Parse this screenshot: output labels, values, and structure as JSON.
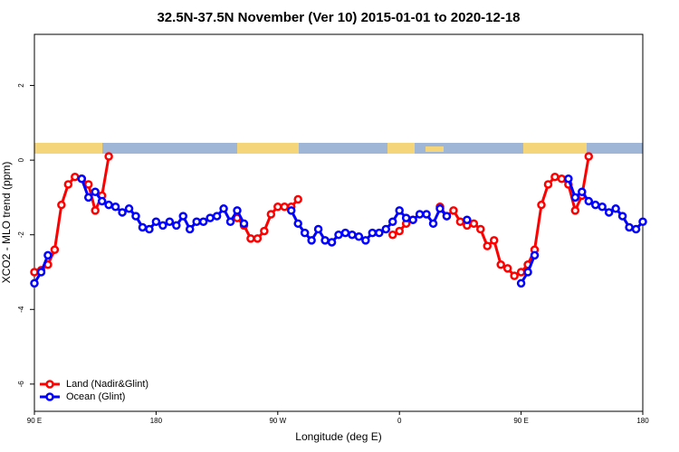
{
  "chart_data": {
    "type": "line",
    "title": "32.5N-37.5N November (Ver 10)   2015-01-01 to 2020-12-18",
    "xlabel": "Longitude (deg E)",
    "ylabel": "XCO2 - MLO trend (ppm)",
    "x": [
      90,
      95,
      100,
      105,
      110,
      115,
      120,
      125,
      130,
      135,
      140,
      145,
      150,
      155,
      160,
      165,
      170,
      175,
      180,
      185,
      190,
      195,
      200,
      205,
      210,
      215,
      220,
      225,
      230,
      235,
      240,
      245,
      250,
      255,
      260,
      265,
      270,
      275,
      280,
      285,
      290,
      295,
      300,
      305,
      310,
      315,
      320,
      325,
      330,
      335,
      340,
      345,
      350,
      355,
      360,
      365,
      370,
      375,
      380,
      385,
      390,
      395,
      400,
      405,
      410,
      415,
      420,
      425,
      430,
      435,
      440,
      445,
      450,
      455,
      460,
      465,
      470,
      475,
      480,
      485,
      490,
      495,
      500,
      505,
      510,
      515,
      520,
      525,
      530,
      535,
      540
    ],
    "xlim": [
      90,
      540
    ],
    "xticks": [
      {
        "value": 90,
        "label": "90 E"
      },
      {
        "value": 180,
        "label": "180"
      },
      {
        "value": 270,
        "label": "90 W"
      },
      {
        "value": 360,
        "label": "0"
      },
      {
        "value": 450,
        "label": "90 E"
      },
      {
        "value": 540,
        "label": "180"
      }
    ],
    "ylim": [
      -6.73,
      3.37
    ],
    "yticks": [
      -6,
      -4,
      -2,
      0,
      2
    ],
    "legend": "bottom-left",
    "series": [
      {
        "name": "Land (Nadir&Glint)",
        "color": "#ff0000",
        "values": [
          -3.0,
          -2.95,
          -2.8,
          -2.4,
          -1.2,
          -0.65,
          -0.45,
          -0.5,
          -0.65,
          -1.35,
          -0.95,
          0.1,
          null,
          null,
          null,
          null,
          null,
          null,
          null,
          null,
          null,
          null,
          null,
          null,
          null,
          null,
          null,
          null,
          null,
          null,
          -1.55,
          -1.75,
          -2.1,
          -2.1,
          -1.9,
          -1.45,
          -1.25,
          -1.25,
          -1.25,
          -1.05,
          null,
          null,
          null,
          null,
          null,
          null,
          null,
          null,
          null,
          null,
          null,
          null,
          null,
          -2.0,
          -1.9,
          -1.7,
          -1.6,
          null,
          null,
          null,
          -1.25,
          -1.5,
          -1.35,
          -1.65,
          -1.75,
          -1.7,
          -1.85,
          -2.3,
          -2.15,
          -2.8,
          -2.9,
          -3.1,
          -3.0,
          -2.8,
          -2.4,
          -1.2,
          -0.65,
          -0.45,
          -0.5,
          -0.65,
          -1.35,
          -0.95,
          0.1,
          null,
          null,
          null,
          null,
          null,
          null,
          null,
          null
        ]
      },
      {
        "name": "Ocean (Glint)",
        "color": "#0000ff",
        "values": [
          -3.3,
          -3.0,
          -2.55,
          null,
          null,
          null,
          null,
          -0.5,
          -1.0,
          -0.85,
          -1.1,
          -1.2,
          -1.25,
          -1.4,
          -1.3,
          -1.5,
          -1.8,
          -1.85,
          -1.65,
          -1.75,
          -1.65,
          -1.75,
          -1.5,
          -1.85,
          -1.65,
          -1.65,
          -1.55,
          -1.5,
          -1.3,
          -1.65,
          -1.35,
          -1.7,
          null,
          null,
          null,
          null,
          null,
          null,
          -1.35,
          -1.7,
          -1.95,
          -2.15,
          -1.85,
          -2.15,
          -2.2,
          -2.0,
          -1.95,
          -2.0,
          -2.05,
          -2.15,
          -1.95,
          -1.95,
          -1.85,
          -1.65,
          -1.35,
          -1.55,
          -1.6,
          -1.45,
          -1.45,
          -1.7,
          -1.3,
          -1.5,
          null,
          null,
          -1.6,
          null,
          null,
          null,
          null,
          null,
          null,
          null,
          -3.3,
          -3.0,
          -2.55,
          null,
          null,
          null,
          null,
          -0.5,
          -1.0,
          -0.85,
          -1.1,
          -1.2,
          -1.25,
          -1.4,
          -1.3,
          -1.5,
          -1.8,
          -1.85,
          -1.65
        ]
      }
    ]
  }
}
